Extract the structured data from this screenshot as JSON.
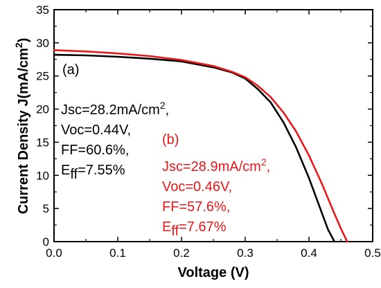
{
  "chart_data": {
    "type": "line",
    "xlabel": "Voltage (V)",
    "ylabel": "Current Density J(mA/cm",
    "ylabel_sup": "2",
    "ylabel_tail": ")",
    "xlim": [
      0.0,
      0.5
    ],
    "ylim": [
      0,
      35
    ],
    "x_ticks": [
      "0.0",
      "0.1",
      "0.2",
      "0.3",
      "0.4",
      "0.5"
    ],
    "y_ticks": [
      "0",
      "5",
      "10",
      "15",
      "20",
      "25",
      "30",
      "35"
    ],
    "series": [
      {
        "color": "#000000",
        "x": [
          0.0,
          0.05,
          0.1,
          0.15,
          0.2,
          0.25,
          0.28,
          0.3,
          0.32,
          0.34,
          0.36,
          0.38,
          0.4,
          0.41,
          0.42,
          0.43,
          0.44
        ],
        "y": [
          28.2,
          28.1,
          27.9,
          27.6,
          27.2,
          26.3,
          25.5,
          24.6,
          23.0,
          21.0,
          18.0,
          14.2,
          9.6,
          7.0,
          4.4,
          1.8,
          0.0
        ]
      },
      {
        "color": "#e8171a",
        "x": [
          0.0,
          0.05,
          0.1,
          0.15,
          0.2,
          0.25,
          0.28,
          0.3,
          0.32,
          0.34,
          0.36,
          0.38,
          0.4,
          0.42,
          0.43,
          0.44,
          0.45,
          0.46
        ],
        "y": [
          28.9,
          28.7,
          28.4,
          28.0,
          27.4,
          26.5,
          25.6,
          24.8,
          23.5,
          21.8,
          19.5,
          16.6,
          13.0,
          8.8,
          6.5,
          4.2,
          2.0,
          0.0
        ]
      }
    ],
    "annotations": {
      "a": {
        "label": "(a)",
        "jsc_prefix": "Jsc=28.2mA/cm",
        "jsc_sup": "2",
        "jsc_suffix": ",",
        "voc": "Voc=0.44V,",
        "ff": "FF=60.6%,",
        "eff_main": "E",
        "eff_sub": "ff",
        "eff_value": "=7.55%"
      },
      "b": {
        "label": "(b)",
        "jsc_prefix": "Jsc=28.9mA/cm",
        "jsc_sup": "2",
        "jsc_suffix": ",",
        "voc": "Voc=0.46V,",
        "ff": "FF=57.6%,",
        "eff_main": "E",
        "eff_sub": "ff",
        "eff_value": "=7.67%"
      }
    }
  }
}
